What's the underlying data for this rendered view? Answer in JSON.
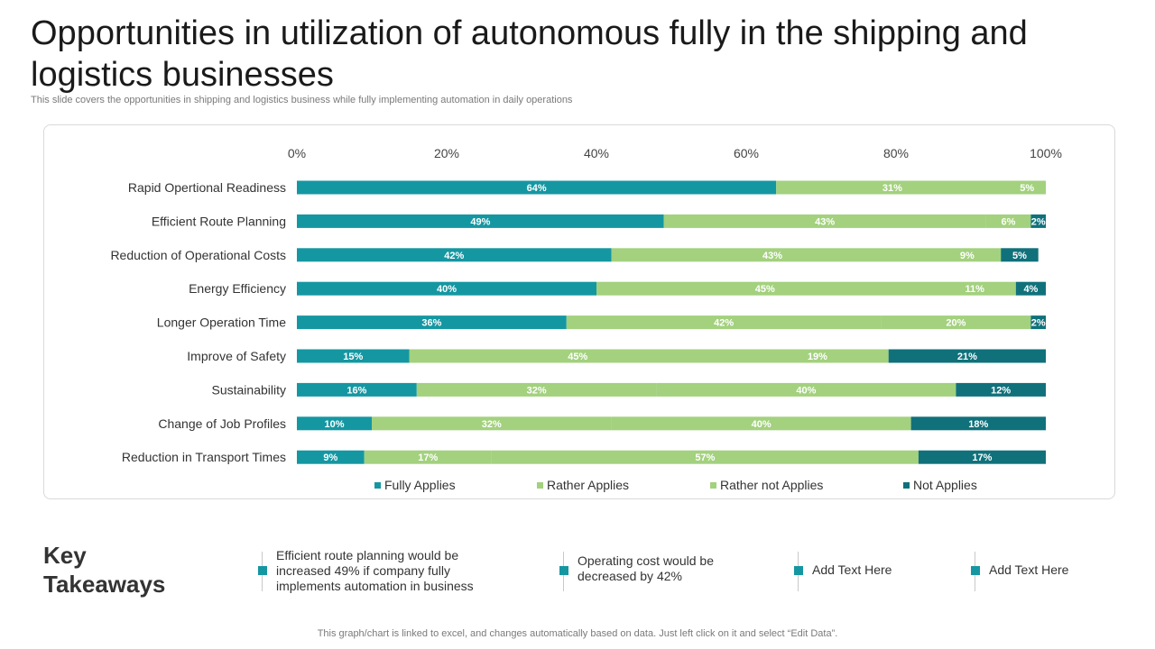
{
  "title": "Opportunities in utilization of autonomous fully in the shipping and logistics businesses",
  "subtitle": "This slide covers the opportunities in shipping and logistics business while fully implementing automation in daily operations",
  "chart_data": {
    "type": "bar",
    "orientation": "horizontal",
    "stacked": true,
    "categories": [
      "Rapid Opertional Readiness",
      "Efficient Route Planning",
      "Reduction of Operational Costs",
      "Energy Efficiency",
      "Longer Operation Time",
      "Improve of Safety",
      "Sustainability",
      "Change of Job Profiles",
      "Reduction in Transport Times"
    ],
    "series": [
      {
        "name": "Fully Applies",
        "color": "#1597a2",
        "values": [
          64,
          49,
          42,
          40,
          36,
          15,
          16,
          10,
          9
        ]
      },
      {
        "name": "Rather Applies",
        "color": "#a3d17e",
        "values": [
          31,
          43,
          43,
          45,
          42,
          45,
          32,
          32,
          17
        ]
      },
      {
        "name": "Rather not Applies",
        "color": "#a3d17e",
        "values": [
          5,
          6,
          9,
          11,
          20,
          19,
          40,
          40,
          57
        ]
      },
      {
        "name": "Not Applies",
        "color": "#10717b",
        "values": [
          0,
          2,
          5,
          4,
          2,
          21,
          12,
          18,
          17
        ]
      }
    ],
    "xlim": [
      0,
      100
    ],
    "xticks": [
      "0%",
      "20%",
      "40%",
      "60%",
      "80%",
      "100%"
    ],
    "grid": false,
    "legend_position": "bottom"
  },
  "takeaways": {
    "heading": "Key Takeaways",
    "items": [
      {
        "text": "Efficient route planning would be increased 49% if company fully implements automation in business"
      },
      {
        "text": "Operating cost would be decreased by 42%"
      },
      {
        "text": "Add Text Here"
      },
      {
        "text": "Add Text Here"
      }
    ]
  },
  "footer": "This graph/chart is linked to excel,  and changes automatically based on data. Just left click on it and select “Edit Data”."
}
